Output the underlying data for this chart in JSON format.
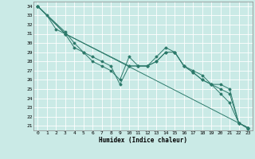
{
  "xlabel": "Humidex (Indice chaleur)",
  "xlim": [
    -0.5,
    23.5
  ],
  "ylim": [
    20.5,
    34.5
  ],
  "xticks": [
    0,
    1,
    2,
    3,
    4,
    5,
    6,
    7,
    8,
    9,
    10,
    11,
    12,
    13,
    14,
    15,
    16,
    17,
    18,
    19,
    20,
    21,
    22,
    23
  ],
  "yticks": [
    21,
    22,
    23,
    24,
    25,
    26,
    27,
    28,
    29,
    30,
    31,
    32,
    33,
    34
  ],
  "bg_color": "#caeae6",
  "grid_color": "#ffffff",
  "line_color": "#2d7a6b",
  "lines": [
    {
      "x": [
        0,
        1,
        2,
        3,
        4,
        5,
        6,
        7,
        8,
        9,
        10,
        11,
        12,
        13,
        14,
        15,
        16,
        17,
        18,
        19,
        20,
        21,
        22,
        23
      ],
      "y": [
        34.0,
        33.0,
        31.5,
        31.0,
        29.5,
        29.0,
        28.0,
        27.5,
        27.0,
        26.0,
        28.5,
        27.5,
        27.5,
        28.5,
        29.5,
        29.0,
        27.5,
        27.0,
        26.5,
        25.5,
        24.5,
        23.5,
        21.3,
        20.8
      ]
    },
    {
      "x": [
        0,
        3,
        22,
        23
      ],
      "y": [
        34.0,
        31.0,
        21.3,
        20.7
      ]
    },
    {
      "x": [
        0,
        3,
        4,
        5,
        6,
        7,
        8,
        9,
        10,
        11,
        12,
        13,
        14,
        15,
        16,
        17,
        18,
        19,
        20,
        21,
        22,
        23
      ],
      "y": [
        34.0,
        31.2,
        30.0,
        29.0,
        28.5,
        28.0,
        27.5,
        25.5,
        27.5,
        27.5,
        27.5,
        28.0,
        29.0,
        29.0,
        27.5,
        26.8,
        26.0,
        25.5,
        25.0,
        24.5,
        21.3,
        20.8
      ]
    },
    {
      "x": [
        0,
        3,
        10,
        11,
        12,
        13,
        14,
        15,
        16,
        17,
        18,
        19,
        20,
        21,
        22,
        23
      ],
      "y": [
        34.0,
        31.0,
        27.5,
        27.5,
        27.5,
        28.0,
        29.0,
        29.0,
        27.5,
        26.8,
        26.0,
        25.5,
        25.5,
        25.0,
        21.3,
        20.8
      ]
    }
  ]
}
